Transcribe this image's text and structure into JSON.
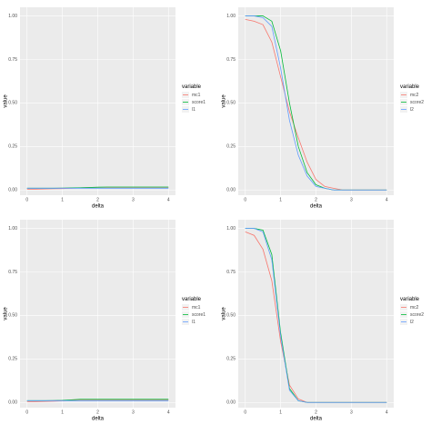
{
  "chart_data": [
    {
      "type": "line",
      "x_label": "delta",
      "y_label": "value",
      "legend_title": "variable",
      "x": [
        0,
        0.25,
        0.5,
        0.75,
        1,
        1.25,
        1.5,
        1.75,
        2,
        2.25,
        2.5,
        2.75,
        3,
        3.25,
        3.5,
        3.75,
        4
      ],
      "xlim": [
        -0.2,
        4.2
      ],
      "xticks": [
        0,
        1,
        2,
        3,
        4
      ],
      "ylim": [
        -0.03,
        1.05
      ],
      "yticks": [
        {
          "value": 0,
          "label": "0.00"
        },
        {
          "value": 0.25,
          "label": "0.25"
        },
        {
          "value": 0.5,
          "label": "0.50"
        },
        {
          "value": 0.75,
          "label": "0.75"
        },
        {
          "value": 1,
          "label": "1.00"
        }
      ],
      "grid": true,
      "series": [
        {
          "name": "mc1",
          "color": "#F8766D",
          "values": [
            0.005,
            0.005,
            0.006,
            0.007,
            0.008,
            0.01,
            0.012,
            0.014,
            0.015,
            0.015,
            0.015,
            0.015,
            0.015,
            0.015,
            0.015,
            0.015,
            0.015
          ]
        },
        {
          "name": "score1",
          "color": "#00BA38",
          "values": [
            0.01,
            0.01,
            0.01,
            0.01,
            0.011,
            0.012,
            0.013,
            0.014,
            0.016,
            0.017,
            0.017,
            0.017,
            0.017,
            0.017,
            0.017,
            0.017,
            0.017
          ]
        },
        {
          "name": "l1",
          "color": "#619CFF",
          "values": [
            0.01,
            0.01,
            0.01,
            0.01,
            0.01,
            0.01,
            0.01,
            0.01,
            0.01,
            0.01,
            0.01,
            0.01,
            0.01,
            0.01,
            0.01,
            0.01,
            0.01
          ]
        }
      ]
    },
    {
      "type": "line",
      "x_label": "delta",
      "y_label": "value",
      "legend_title": "variable",
      "x": [
        0,
        0.25,
        0.5,
        0.75,
        1,
        1.25,
        1.5,
        1.75,
        2,
        2.25,
        2.5,
        2.75,
        3,
        3.25,
        3.5,
        3.75,
        4
      ],
      "xlim": [
        -0.2,
        4.2
      ],
      "xticks": [
        0,
        1,
        2,
        3,
        4
      ],
      "ylim": [
        -0.03,
        1.05
      ],
      "yticks": [
        {
          "value": 0,
          "label": "0.00"
        },
        {
          "value": 0.25,
          "label": "0.25"
        },
        {
          "value": 0.5,
          "label": "0.50"
        },
        {
          "value": 0.75,
          "label": "0.75"
        },
        {
          "value": 1,
          "label": "1.00"
        }
      ],
      "grid": true,
      "series": [
        {
          "name": "mc2",
          "color": "#F8766D",
          "values": [
            0.98,
            0.97,
            0.95,
            0.85,
            0.65,
            0.45,
            0.3,
            0.16,
            0.06,
            0.02,
            0.01,
            0,
            0,
            0,
            0,
            0,
            0
          ]
        },
        {
          "name": "score2",
          "color": "#00BA38",
          "values": [
            1,
            1,
            1,
            0.97,
            0.8,
            0.5,
            0.25,
            0.1,
            0.03,
            0.01,
            0,
            0,
            0,
            0,
            0,
            0,
            0
          ]
        },
        {
          "name": "l2",
          "color": "#619CFF",
          "values": [
            1,
            1,
            0.99,
            0.94,
            0.7,
            0.4,
            0.2,
            0.08,
            0.02,
            0.01,
            0,
            0,
            0,
            0,
            0,
            0,
            0
          ]
        }
      ]
    },
    {
      "type": "line",
      "x_label": "delta",
      "y_label": "value",
      "legend_title": "variable",
      "x": [
        0,
        0.25,
        0.5,
        0.75,
        1,
        1.25,
        1.5,
        1.75,
        2,
        2.25,
        2.5,
        2.75,
        3,
        3.25,
        3.5,
        3.75,
        4
      ],
      "xlim": [
        -0.2,
        4.2
      ],
      "xticks": [
        0,
        1,
        2,
        3,
        4
      ],
      "ylim": [
        -0.03,
        1.05
      ],
      "yticks": [
        {
          "value": 0,
          "label": "0.00"
        },
        {
          "value": 0.25,
          "label": "0.25"
        },
        {
          "value": 0.5,
          "label": "0.50"
        },
        {
          "value": 0.75,
          "label": "0.75"
        },
        {
          "value": 1,
          "label": "1.00"
        }
      ],
      "grid": true,
      "series": [
        {
          "name": "mc1",
          "color": "#F8766D",
          "values": [
            0.005,
            0.005,
            0.006,
            0.007,
            0.009,
            0.013,
            0.015,
            0.015,
            0.015,
            0.015,
            0.015,
            0.015,
            0.015,
            0.015,
            0.015,
            0.015,
            0.015
          ]
        },
        {
          "name": "score1",
          "color": "#00BA38",
          "values": [
            0.01,
            0.01,
            0.01,
            0.011,
            0.012,
            0.015,
            0.018,
            0.018,
            0.018,
            0.018,
            0.018,
            0.018,
            0.018,
            0.018,
            0.018,
            0.018,
            0.018
          ]
        },
        {
          "name": "l1",
          "color": "#619CFF",
          "values": [
            0.01,
            0.01,
            0.01,
            0.01,
            0.01,
            0.01,
            0.01,
            0.01,
            0.01,
            0.01,
            0.01,
            0.01,
            0.01,
            0.01,
            0.01,
            0.01,
            0.01
          ]
        }
      ]
    },
    {
      "type": "line",
      "x_label": "delta",
      "y_label": "value",
      "legend_title": "variable",
      "x": [
        0,
        0.25,
        0.5,
        0.75,
        1,
        1.25,
        1.5,
        1.75,
        2,
        2.25,
        2.5,
        2.75,
        3,
        3.25,
        3.5,
        3.75,
        4
      ],
      "xlim": [
        -0.2,
        4.2
      ],
      "xticks": [
        0,
        1,
        2,
        3,
        4
      ],
      "ylim": [
        -0.03,
        1.05
      ],
      "yticks": [
        {
          "value": 0,
          "label": "0.00"
        },
        {
          "value": 0.25,
          "label": "0.25"
        },
        {
          "value": 0.5,
          "label": "0.50"
        },
        {
          "value": 0.75,
          "label": "0.75"
        },
        {
          "value": 1,
          "label": "1.00"
        }
      ],
      "grid": true,
      "series": [
        {
          "name": "mc2",
          "color": "#F8766D",
          "values": [
            0.98,
            0.96,
            0.88,
            0.7,
            0.35,
            0.1,
            0.02,
            0,
            0,
            0,
            0,
            0,
            0,
            0,
            0,
            0,
            0
          ]
        },
        {
          "name": "score2",
          "color": "#00BA38",
          "values": [
            1,
            1,
            0.99,
            0.85,
            0.4,
            0.08,
            0.01,
            0,
            0,
            0,
            0,
            0,
            0,
            0,
            0,
            0,
            0
          ]
        },
        {
          "name": "l2",
          "color": "#619CFF",
          "values": [
            1,
            1,
            0.98,
            0.82,
            0.38,
            0.07,
            0.01,
            0,
            0,
            0,
            0,
            0,
            0,
            0,
            0,
            0,
            0
          ]
        }
      ]
    }
  ]
}
